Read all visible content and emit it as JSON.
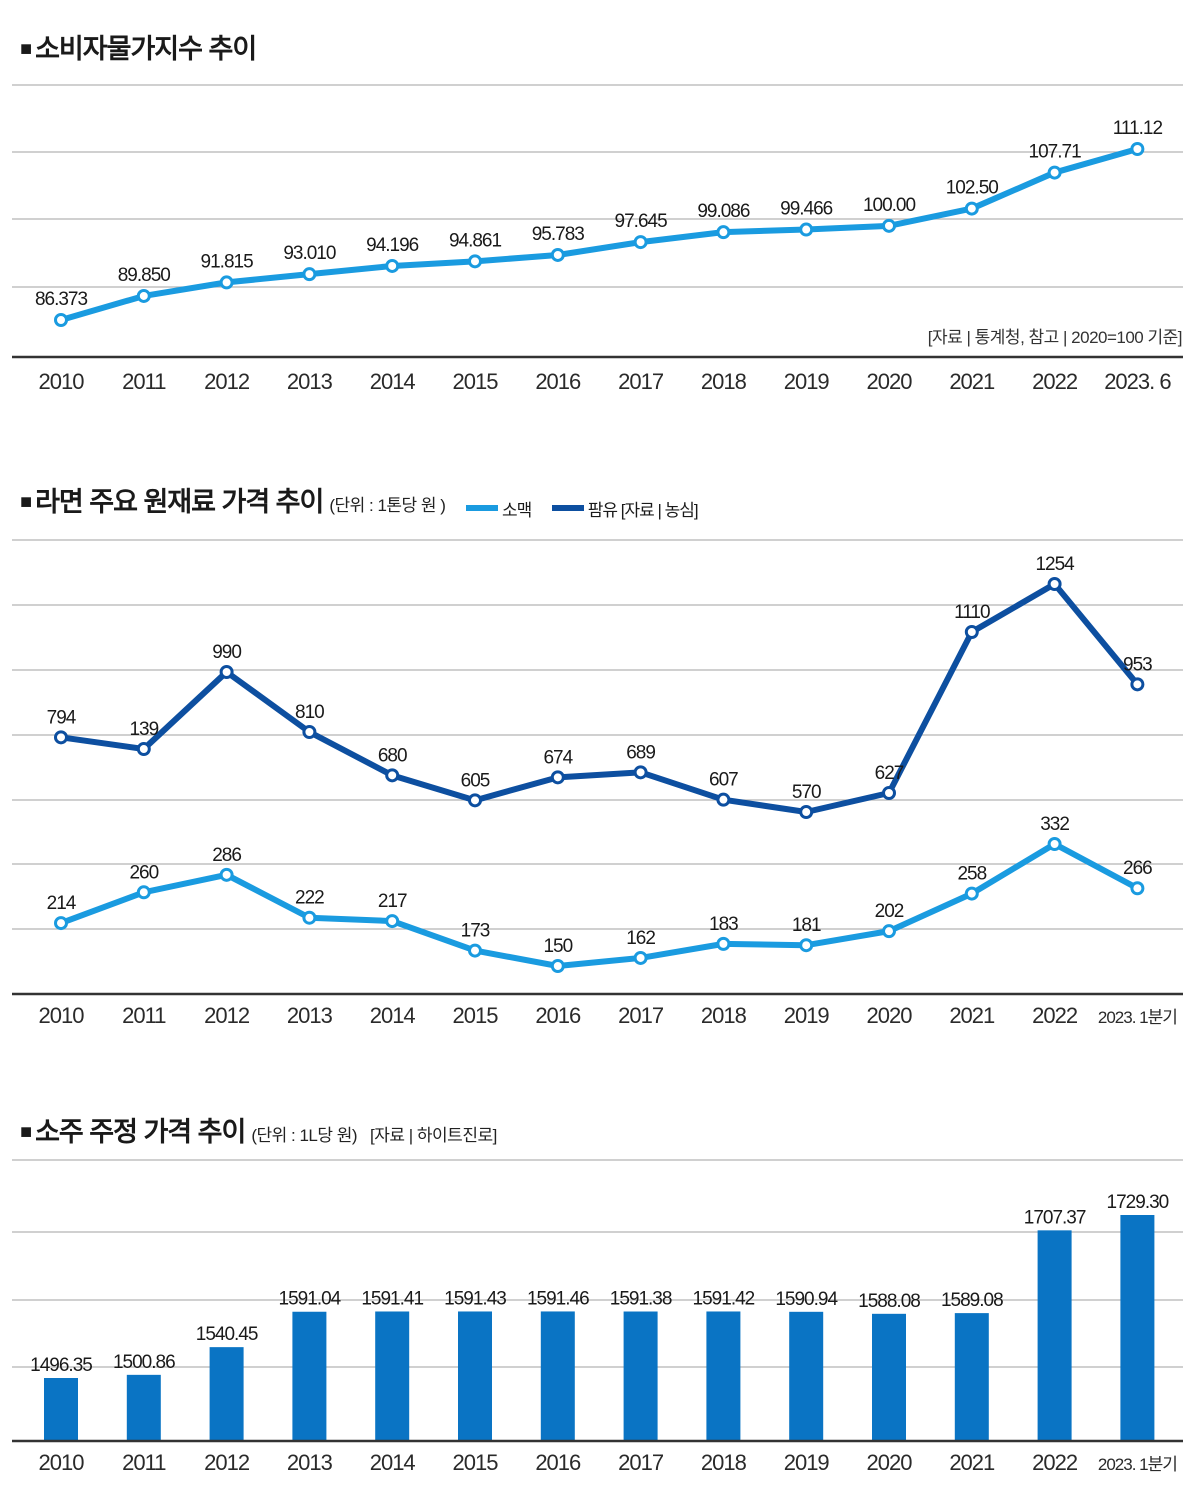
{
  "colors": {
    "light_blue": "#1a9be0",
    "dark_blue": "#0d4fa0",
    "bar_blue": "#0a74c4",
    "grid": "#b5b5b5",
    "axis": "#333333"
  },
  "chart_data": [
    {
      "type": "line",
      "title": "소비자물가지수 추이",
      "title_marker": "■",
      "note": "[자료 | 통계청, 참고 | 2020=100 기준]",
      "categories": [
        "2010",
        "2011",
        "2012",
        "2013",
        "2014",
        "2015",
        "2016",
        "2017",
        "2018",
        "2019",
        "2020",
        "2021",
        "2022",
        "2023. 6"
      ],
      "series": [
        {
          "name": "소비자물가지수",
          "values": [
            86.373,
            89.85,
            91.815,
            93.01,
            94.196,
            94.861,
            95.783,
            97.645,
            99.086,
            99.466,
            100.0,
            102.5,
            107.71,
            111.12
          ],
          "labels": [
            "86.373",
            "89.850",
            "91.815",
            "93.010",
            "94.196",
            "94.861",
            "95.783",
            "97.645",
            "99.086",
            "99.466",
            "100.00",
            "102.50",
            "107.71",
            "111.12"
          ]
        }
      ],
      "xlabel": "",
      "ylabel": "",
      "ylim": [
        80,
        115
      ],
      "grid": true,
      "legend": "none"
    },
    {
      "type": "line",
      "title": "라면 주요 원재료 가격 추이",
      "title_marker": "■",
      "unit": "(단위 : 1톤당 원 )",
      "source": "[자료 | 농심]",
      "categories": [
        "2010",
        "2011",
        "2012",
        "2013",
        "2014",
        "2015",
        "2016",
        "2017",
        "2018",
        "2019",
        "2020",
        "2021",
        "2022",
        "2023. 1분기"
      ],
      "series": [
        {
          "name": "소맥",
          "values": [
            214,
            260,
            286,
            222,
            217,
            173,
            150,
            162,
            183,
            181,
            202,
            258,
            332,
            266
          ],
          "labels": [
            "214",
            "260",
            "286",
            "222",
            "217",
            "173",
            "150",
            "162",
            "183",
            "181",
            "202",
            "258",
            "332",
            "266"
          ]
        },
        {
          "name": "팜유",
          "values": [
            794,
            139,
            990,
            810,
            680,
            605,
            674,
            689,
            607,
            570,
            627,
            1110,
            1254,
            953
          ],
          "labels": [
            "794",
            "139",
            "990",
            "810",
            "680",
            "605",
            "674",
            "689",
            "607",
            "570",
            "627",
            "1110",
            "1254",
            "953"
          ]
        }
      ],
      "xlabel": "",
      "ylabel": "",
      "grid": true,
      "legend": "top-inline"
    },
    {
      "type": "bar",
      "title": "소주 주정 가격 추이",
      "title_marker": "■",
      "unit": "(단위 : 1L당 원)",
      "source": "[자료 | 하이트진로]",
      "categories": [
        "2010",
        "2011",
        "2012",
        "2013",
        "2014",
        "2015",
        "2016",
        "2017",
        "2018",
        "2019",
        "2020",
        "2021",
        "2022",
        "2023. 1분기"
      ],
      "values": [
        1496.35,
        1500.86,
        1540.45,
        1591.04,
        1591.41,
        1591.43,
        1591.46,
        1591.38,
        1591.42,
        1590.94,
        1588.08,
        1589.08,
        1707.37,
        1729.3
      ],
      "labels": [
        "1496.35",
        "1500.86",
        "1540.45",
        "1591.04",
        "1591.41",
        "1591.43",
        "1591.46",
        "1591.38",
        "1591.42",
        "1590.94",
        "1588.08",
        "1589.08",
        "1707.37",
        "1729.30"
      ],
      "xlabel": "",
      "ylabel": "",
      "grid": true,
      "legend": "none"
    }
  ]
}
